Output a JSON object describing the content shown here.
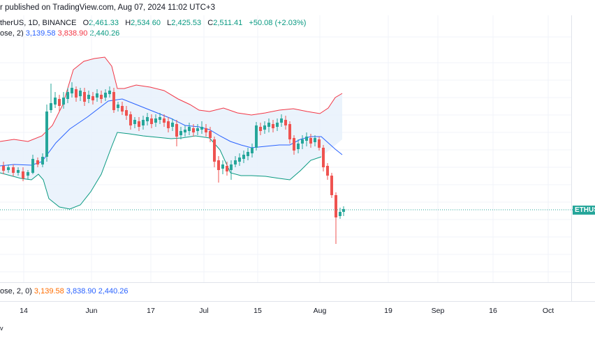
{
  "header": {
    "published": "r published on TradingView.com, Aug 07, 2024 11:02 UTC+3"
  },
  "symbol_line": {
    "name": "therUS, 1D, BINANCE",
    "o_label": "O",
    "o_value": "2,461.33",
    "h_label": "H",
    "h_value": "2,534.60",
    "l_label": "L",
    "l_value": "2,425.53",
    "c_label": "C",
    "c_value": "2,511.41",
    "change": "+50.08 (+2.03%)"
  },
  "bb_line": {
    "prefix": "ose, 2)",
    "basis": "3,139.58",
    "upper": "3,838.90",
    "lower": "2,440.26"
  },
  "bottom_line": {
    "prefix": "ose, 2, 0)",
    "v1": "3,139.58",
    "v2": "3,838.90",
    "v3": "2,440.26"
  },
  "price_tag": "ETHUS",
  "x_axis": [
    "14",
    "Jun",
    "17",
    "Jul",
    "15",
    "Aug",
    "19",
    "Sep",
    "16",
    "Oct"
  ],
  "footer_logo": "v",
  "colors": {
    "up": "#26a69a",
    "down": "#ef5350",
    "basis": "#2962ff",
    "upper": "#f23645",
    "lower": "#089981",
    "band_fill": "#e8f1fb"
  }
}
